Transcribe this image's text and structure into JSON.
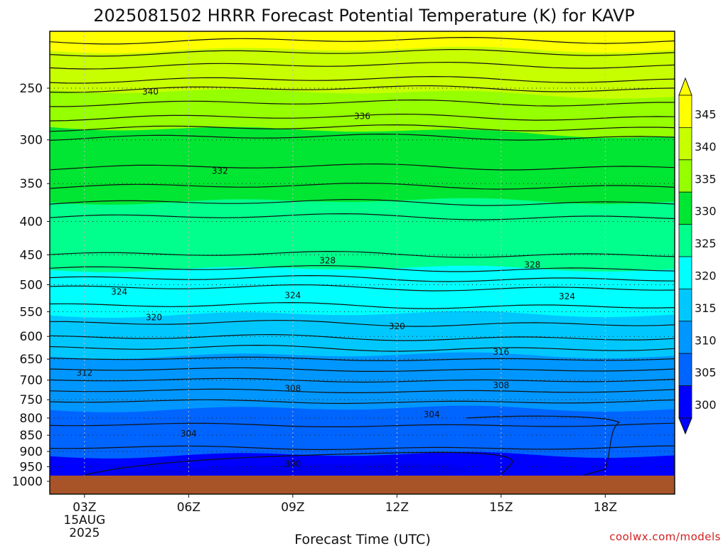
{
  "chart_data": {
    "type": "contour",
    "title": "2025081502 HRRR Forecast Potential Temperature (K) for KAVP",
    "xlabel": "Forecast Time (UTC)",
    "credit": "coolwx.com/models",
    "x_ticks": [
      {
        "hour": 3,
        "lines": [
          "03Z",
          "15AUG",
          "2025"
        ]
      },
      {
        "hour": 6,
        "lines": [
          "06Z"
        ]
      },
      {
        "hour": 9,
        "lines": [
          "09Z"
        ]
      },
      {
        "hour": 12,
        "lines": [
          "12Z"
        ]
      },
      {
        "hour": 15,
        "lines": [
          "15Z"
        ]
      },
      {
        "hour": 18,
        "lines": [
          "18Z"
        ]
      }
    ],
    "xlim": [
      2,
      20
    ],
    "y_ticks": [
      250,
      300,
      350,
      400,
      450,
      500,
      550,
      600,
      650,
      700,
      750,
      800,
      850,
      900,
      950,
      1000
    ],
    "ylim": [
      1000,
      200
    ],
    "y_scale": "log",
    "colorbar": {
      "labels": [
        345,
        340,
        335,
        330,
        325,
        320,
        315,
        310,
        305,
        300
      ],
      "colors": [
        "#ffff00",
        "#c8ff00",
        "#96ff00",
        "#00e632",
        "#00ff8c",
        "#00ffff",
        "#00c8ff",
        "#0096ff",
        "#0064ff",
        "#0000ff"
      ]
    },
    "contour_labels": [
      {
        "text": "340",
        "hour": 4.9,
        "p": 253
      },
      {
        "text": "336",
        "hour": 11.0,
        "p": 276
      },
      {
        "text": "332",
        "hour": 6.9,
        "p": 335
      },
      {
        "text": "328",
        "hour": 10.0,
        "p": 459
      },
      {
        "text": "328",
        "hour": 15.9,
        "p": 466
      },
      {
        "text": "324",
        "hour": 4.0,
        "p": 513
      },
      {
        "text": "324",
        "hour": 9.0,
        "p": 519
      },
      {
        "text": "324",
        "hour": 16.9,
        "p": 521
      },
      {
        "text": "320",
        "hour": 5.0,
        "p": 561
      },
      {
        "text": "320",
        "hour": 12.0,
        "p": 579
      },
      {
        "text": "316",
        "hour": 15.0,
        "p": 634
      },
      {
        "text": "312",
        "hour": 3.0,
        "p": 682
      },
      {
        "text": "308",
        "hour": 9.0,
        "p": 721
      },
      {
        "text": "308",
        "hour": 15.0,
        "p": 713
      },
      {
        "text": "304",
        "hour": 6.0,
        "p": 845
      },
      {
        "text": "304",
        "hour": 13.0,
        "p": 790
      },
      {
        "text": "300",
        "hour": 9.0,
        "p": 940
      }
    ]
  }
}
